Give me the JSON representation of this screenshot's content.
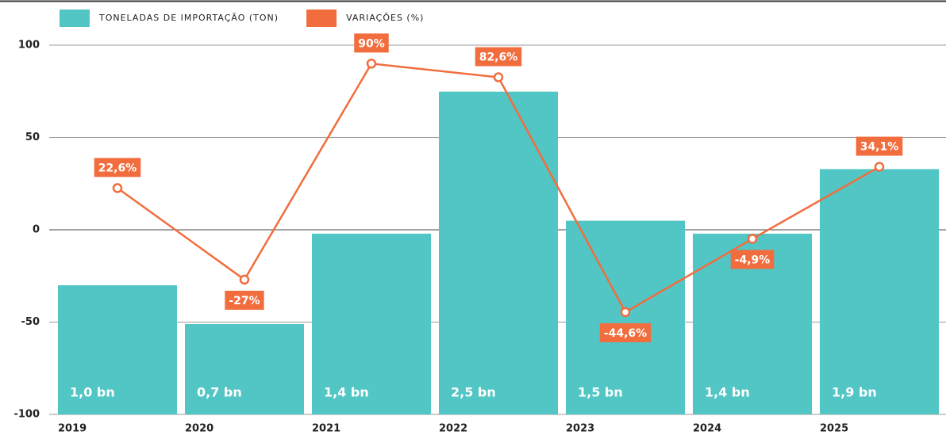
{
  "chart_data": {
    "type": "combo",
    "categories": [
      "2019",
      "2020",
      "2021",
      "2022",
      "2023",
      "2024",
      "2025"
    ],
    "series": [
      {
        "name": "TONELADAS DE IMPORTAÇÃO (TON)",
        "type": "bar",
        "axis": "y2",
        "color": "#52c5c5",
        "values": [
          1.0,
          0.7,
          1.4,
          2.5,
          1.5,
          1.4,
          1.9
        ],
        "value_labels": [
          "1,0 bn",
          "0,7 bn",
          "1,4 bn",
          "2,5 bn",
          "1,5 bn",
          "1,4 bn",
          "1,9 bn"
        ]
      },
      {
        "name": "VARIAÇÕES (%)",
        "type": "line",
        "color": "#f26d3d",
        "values": [
          22.6,
          -27,
          90,
          82.6,
          -44.6,
          -4.9,
          34.1
        ],
        "value_labels": [
          "22,6%",
          "-27%",
          "90%",
          "82,6%",
          "-44,6%",
          "-4,9%",
          "34,1%"
        ]
      }
    ],
    "ylim": [
      -100,
      100
    ],
    "yticks": [
      100,
      50,
      0,
      -50,
      -100
    ],
    "y2lim": [
      0,
      2.86
    ],
    "grid": true
  }
}
